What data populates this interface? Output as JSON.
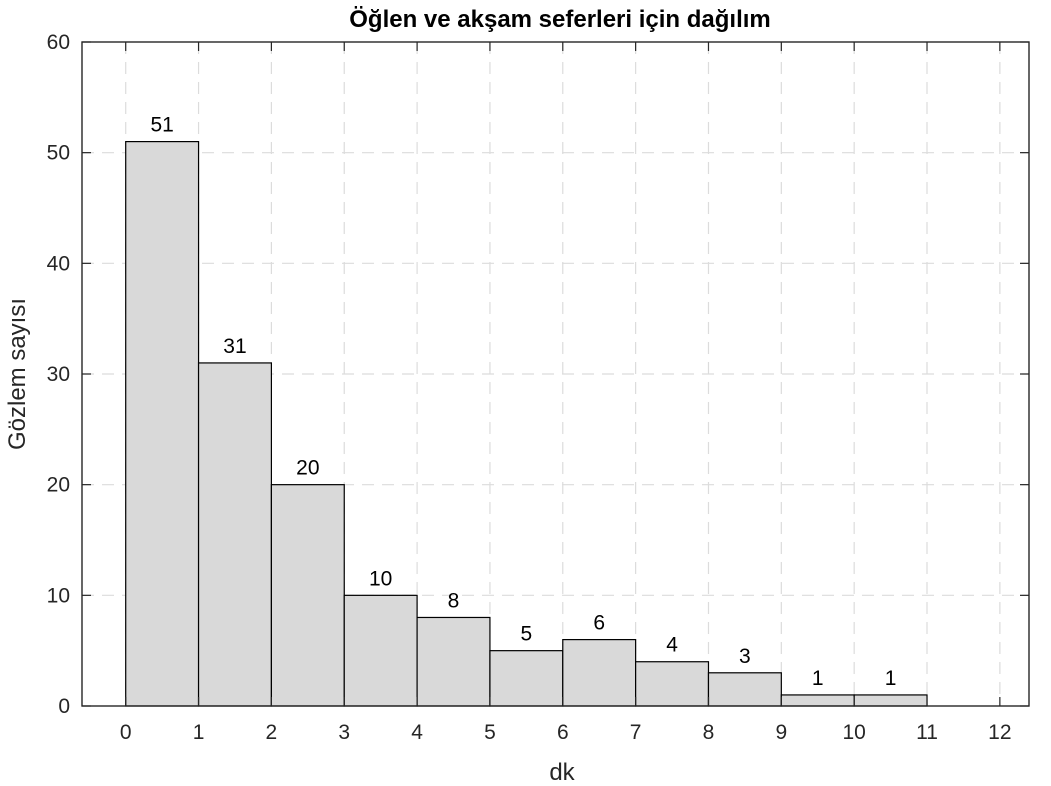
{
  "chart_data": {
    "type": "bar",
    "title": "Öğlen ve akşam seferleri için dağılım",
    "xlabel": "dk",
    "ylabel": "Gözlem sayısı",
    "bin_edges": [
      0,
      1,
      2,
      3,
      4,
      5,
      6,
      7,
      8,
      9,
      10,
      11
    ],
    "values": [
      51,
      31,
      20,
      10,
      8,
      5,
      6,
      4,
      3,
      1,
      1
    ],
    "data_labels": [
      "51",
      "31",
      "20",
      "10",
      "8",
      "5",
      "6",
      "4",
      "3",
      "1",
      "1"
    ],
    "xlim": [
      -0.6,
      12.4
    ],
    "ylim": [
      0,
      60
    ],
    "xticks": [
      0,
      1,
      2,
      3,
      4,
      5,
      6,
      7,
      8,
      9,
      10,
      11,
      12
    ],
    "xtick_labels": [
      "0",
      "1",
      "2",
      "3",
      "4",
      "5",
      "6",
      "7",
      "8",
      "9",
      "10",
      "11",
      "12"
    ],
    "yticks": [
      0,
      10,
      20,
      30,
      40,
      50,
      60
    ],
    "ytick_labels": [
      "0",
      "10",
      "20",
      "30",
      "40",
      "50",
      "60"
    ],
    "grid": true,
    "colors": {
      "bar_fill": "#d9d9d9",
      "bar_edge": "#000000",
      "grid": "#dcdcdc"
    }
  }
}
